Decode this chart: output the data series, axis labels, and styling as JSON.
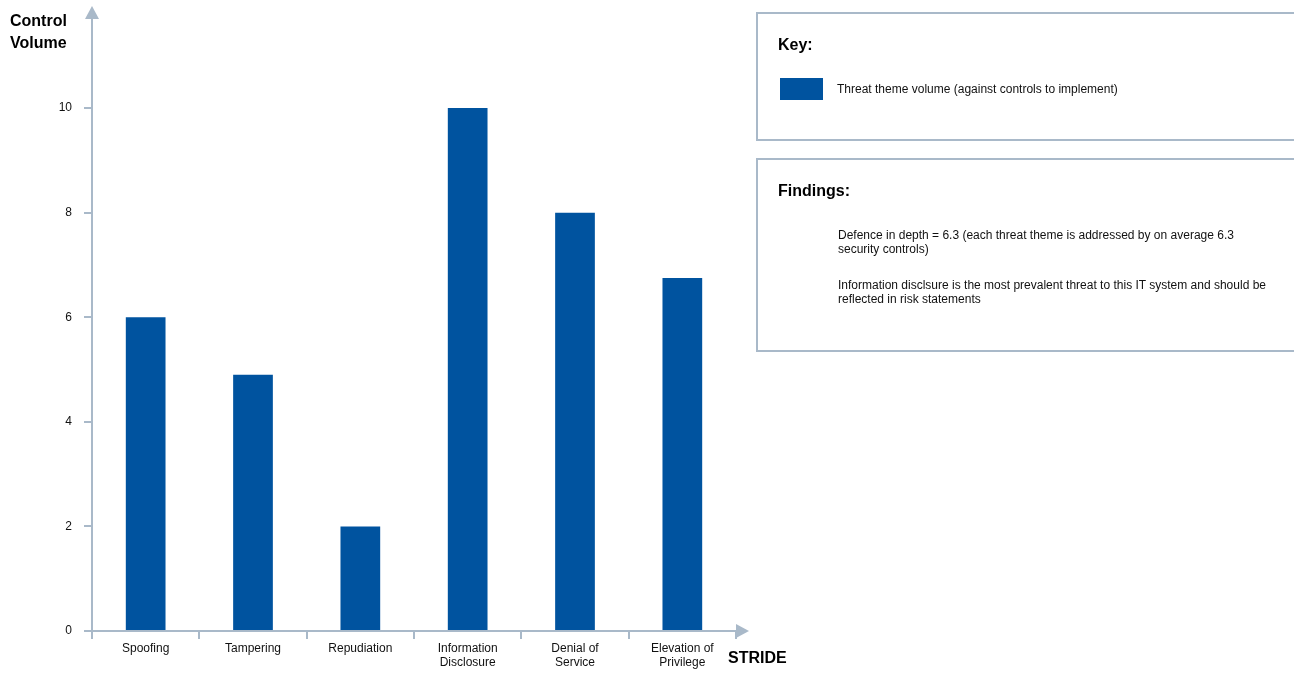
{
  "chart_data": {
    "type": "bar",
    "xlabel": "STRIDE",
    "ylabel": "Control Volume",
    "legend_title": "Key:",
    "legend": "top right",
    "categories": [
      "Spoofing",
      "Tampering",
      "Repudiation",
      "Information Disclosure",
      "Denial of Service",
      "Elevation of Privilege"
    ],
    "series": [
      {
        "name": "Threat theme volume (against controls to implement)",
        "color": "#00539f",
        "values": [
          6,
          4.9,
          2,
          10,
          8,
          6.75
        ]
      }
    ],
    "ylim": [
      0,
      11.7
    ],
    "yticks": [
      0,
      2,
      4,
      6,
      8,
      10
    ],
    "annotations": [
      "Findings:",
      "Defence in depth = 6.3 (each threat theme is addressed by on average 6.3 security controls)",
      "Information disclsure is the most prevalent threat to this IT system and should be reflected in risk statements"
    ]
  }
}
